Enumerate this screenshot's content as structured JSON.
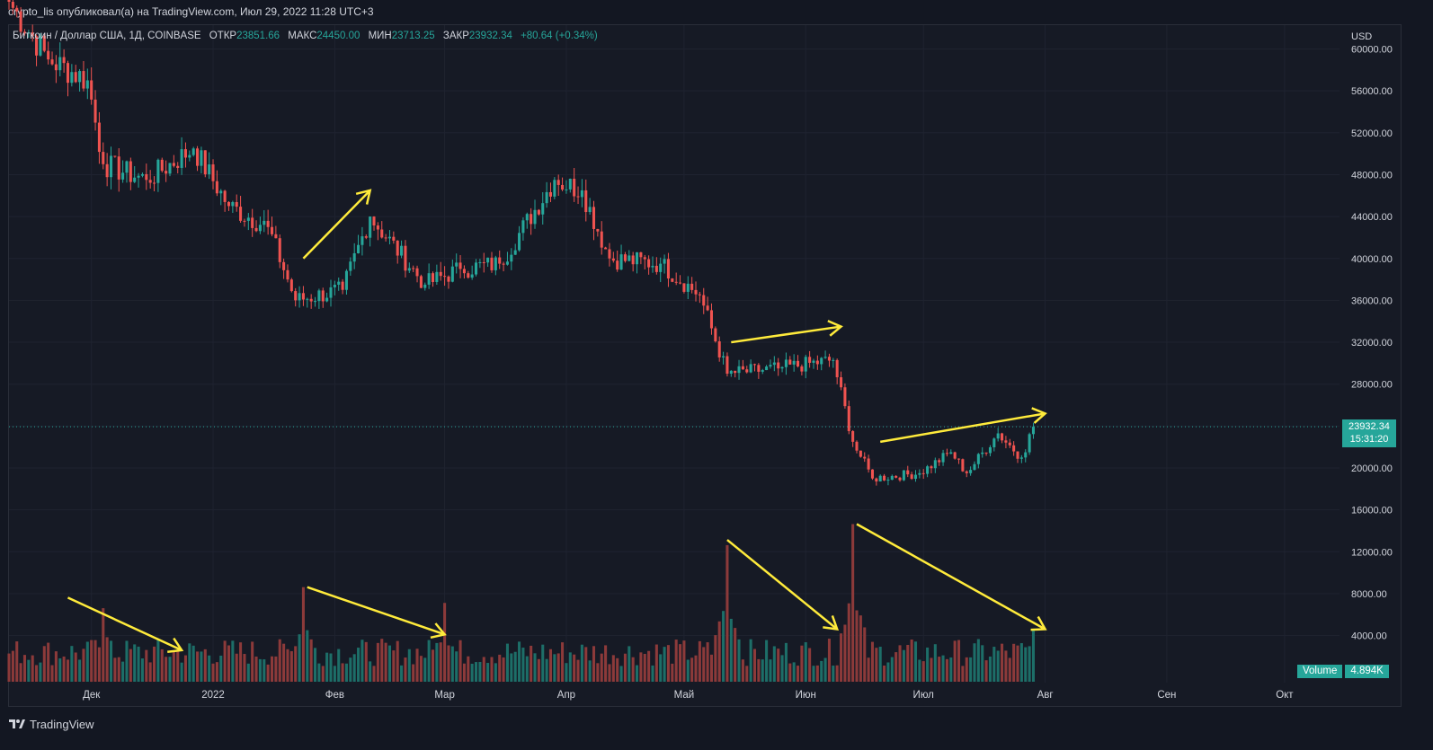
{
  "header": {
    "publisher_line": "crypto_lis опубликовал(а) на TradingView.com, Июл 29, 2022 11:28 UTC+3"
  },
  "legend": {
    "symbol": "Биткоин / Доллар США, 1Д, COINBASE",
    "open_label": "ОТКР",
    "open_value": "23851.66",
    "high_label": "МАКС",
    "high_value": "24450.00",
    "low_label": "МИН",
    "low_value": "23713.25",
    "close_label": "ЗАКР",
    "close_value": "23932.34",
    "change": "+80.64 (+0.34%)"
  },
  "price_axis": {
    "currency": "USD",
    "ticks": [
      "60000.00",
      "56000.00",
      "52000.00",
      "48000.00",
      "44000.00",
      "40000.00",
      "36000.00",
      "32000.00",
      "28000.00",
      "24000.00",
      "20000.00",
      "16000.00",
      "12000.00",
      "8000.00",
      "4000.00"
    ]
  },
  "current_price": {
    "value": "23932.34",
    "countdown": "15:31:20"
  },
  "time_axis": {
    "labels": [
      "Дек",
      "2022",
      "Фев",
      "Мар",
      "Апр",
      "Май",
      "Июн",
      "Июл",
      "Авг",
      "Сен",
      "Окт"
    ]
  },
  "volume": {
    "label": "Volume",
    "value": "4.894K"
  },
  "footer": {
    "brand": "TradingView"
  },
  "colors": {
    "up": "#26a69a",
    "down": "#ef5350",
    "up_vol": "#1d6e68",
    "down_vol": "#8c3a3a",
    "annotation": "#ffeb3b",
    "background": "#161a25",
    "grid": "#1f2330"
  },
  "chart_data": {
    "type": "candlestick",
    "price_unit": "USD",
    "y_range": [
      0,
      62000
    ],
    "x_range": [
      "2021-11-10",
      "2022-10-15"
    ],
    "anchor_points": [
      {
        "date": "2021-11-10",
        "close": 64500
      },
      {
        "date": "2021-11-20",
        "close": 59000
      },
      {
        "date": "2021-11-30",
        "close": 57000
      },
      {
        "date": "2021-12-04",
        "close": 49000
      },
      {
        "date": "2021-12-15",
        "close": 47500
      },
      {
        "date": "2021-12-27",
        "close": 50500
      },
      {
        "date": "2022-01-05",
        "close": 45000
      },
      {
        "date": "2022-01-15",
        "close": 43000
      },
      {
        "date": "2022-01-22",
        "close": 36000
      },
      {
        "date": "2022-02-03",
        "close": 37000
      },
      {
        "date": "2022-02-10",
        "close": 44000
      },
      {
        "date": "2022-02-24",
        "close": 37500
      },
      {
        "date": "2022-03-05",
        "close": 39000
      },
      {
        "date": "2022-03-15",
        "close": 39500
      },
      {
        "date": "2022-03-29",
        "close": 47500
      },
      {
        "date": "2022-04-05",
        "close": 46500
      },
      {
        "date": "2022-04-12",
        "close": 40000
      },
      {
        "date": "2022-04-25",
        "close": 39500
      },
      {
        "date": "2022-05-05",
        "close": 36500
      },
      {
        "date": "2022-05-12",
        "close": 29000
      },
      {
        "date": "2022-05-25",
        "close": 29500
      },
      {
        "date": "2022-06-08",
        "close": 30300
      },
      {
        "date": "2022-06-13",
        "close": 22500
      },
      {
        "date": "2022-06-18",
        "close": 19000
      },
      {
        "date": "2022-06-30",
        "close": 19500
      },
      {
        "date": "2022-07-08",
        "close": 21500
      },
      {
        "date": "2022-07-12",
        "close": 19500
      },
      {
        "date": "2022-07-20",
        "close": 23300
      },
      {
        "date": "2022-07-26",
        "close": 21000
      },
      {
        "date": "2022-07-29",
        "close": 23932
      }
    ],
    "volume_peaks": [
      {
        "date": "2021-12-04",
        "volume": 7000
      },
      {
        "date": "2022-01-24",
        "volume": 9000
      },
      {
        "date": "2022-03-01",
        "volume": 7500
      },
      {
        "date": "2022-05-12",
        "volume": 13000
      },
      {
        "date": "2022-06-13",
        "volume": 15000
      },
      {
        "date": "2022-07-29",
        "volume": 4894
      }
    ],
    "annotations": {
      "arrows_price": [
        {
          "from": [
            "2022-01-24",
            40000
          ],
          "to": [
            "2022-02-10",
            46500
          ]
        },
        {
          "from": [
            "2022-05-13",
            32000
          ],
          "to": [
            "2022-06-10",
            33500
          ]
        },
        {
          "from": [
            "2022-06-20",
            22500
          ],
          "to": [
            "2022-08-01",
            25200
          ]
        }
      ],
      "arrows_volume": [
        {
          "from": [
            "2021-11-25",
            8000
          ],
          "to": [
            "2021-12-24",
            3000
          ]
        },
        {
          "from": [
            "2022-01-25",
            9000
          ],
          "to": [
            "2022-03-01",
            4500
          ]
        },
        {
          "from": [
            "2022-05-12",
            13500
          ],
          "to": [
            "2022-06-09",
            5000
          ]
        },
        {
          "from": [
            "2022-06-14",
            15000
          ],
          "to": [
            "2022-08-01",
            5000
          ]
        }
      ]
    }
  }
}
